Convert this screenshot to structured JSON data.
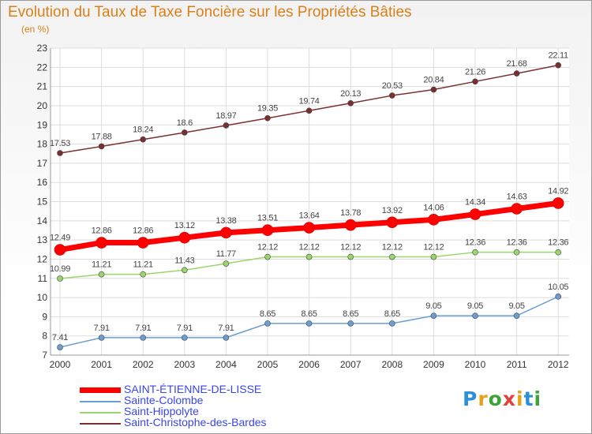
{
  "page": {
    "title": "Evolution du Taux de Taxe Foncière sur les Propriétés Bâties",
    "subtitle": "(en %)"
  },
  "logo": {
    "text": "ProXiti",
    "letters": [
      "P",
      "r",
      "o",
      "x",
      "i",
      "t",
      "i"
    ],
    "colors": [
      "#2d8fd6",
      "#e5a11c",
      "#3ea33a",
      "#e04040",
      "#e5a11c",
      "#2d8fd6",
      "#3ea33a"
    ]
  },
  "chart_data": {
    "type": "line",
    "title": "Evolution du Taux de Taxe Foncière sur les Propriétés Bâties",
    "ylabel": "(en %)",
    "xlabel": "",
    "categories": [
      "2000",
      "2001",
      "2002",
      "2003",
      "2004",
      "2005",
      "2006",
      "2007",
      "2008",
      "2009",
      "2010",
      "2011",
      "2012"
    ],
    "ylim": [
      7,
      23
    ],
    "yticks": [
      "7",
      "8",
      "9",
      "10",
      "11",
      "12",
      "13",
      "14",
      "15",
      "16",
      "17",
      "18",
      "19",
      "20",
      "21",
      "22",
      "23"
    ],
    "grid": true,
    "legend_position": "bottom-left",
    "series": [
      {
        "name": "SAINT-ÉTIENNE-DE-LISSE",
        "color": "#ff0000",
        "highlight": true,
        "values": [
          12.49,
          12.86,
          12.86,
          13.12,
          13.38,
          13.51,
          13.64,
          13.78,
          13.92,
          14.06,
          14.34,
          14.63,
          14.92
        ],
        "labels": [
          "12.49",
          "12.86",
          "12.86",
          "13.12",
          "13.38",
          "13.51",
          "13.64",
          "13.78",
          "13.92",
          "14.06",
          "14.34",
          "14.63",
          "14.92"
        ]
      },
      {
        "name": "Sainte-Colombe",
        "color": "#6a9fd4",
        "highlight": false,
        "values": [
          7.41,
          7.91,
          7.91,
          7.91,
          7.91,
          8.65,
          8.65,
          8.65,
          8.65,
          9.05,
          9.05,
          9.05,
          10.05
        ],
        "labels": [
          "7.41",
          "7.91",
          "7.91",
          "7.91",
          "7.91",
          "8.65",
          "8.65",
          "8.65",
          "8.65",
          "9.05",
          "9.05",
          "9.05",
          "10.05"
        ]
      },
      {
        "name": "Saint-Hippolyte",
        "color": "#99d66b",
        "highlight": false,
        "values": [
          10.99,
          11.21,
          11.21,
          11.43,
          11.77,
          12.12,
          12.12,
          12.12,
          12.12,
          12.12,
          12.36,
          12.36,
          12.36
        ],
        "labels": [
          "10.99",
          "11.21",
          "11.21",
          "11.43",
          "11.77",
          "12.12",
          "12.12",
          "12.12",
          "12.12",
          "12.12",
          "12.36",
          "12.36",
          "12.36"
        ]
      },
      {
        "name": "Saint-Christophe-des-Bardes",
        "color": "#7a3030",
        "highlight": false,
        "values": [
          17.53,
          17.88,
          18.24,
          18.6,
          18.97,
          19.35,
          19.74,
          20.13,
          20.53,
          20.84,
          21.26,
          21.68,
          22.11
        ],
        "labels": [
          "17.53",
          "17.88",
          "18.24",
          "18.6",
          "18.97",
          "19.35",
          "19.74",
          "20.13",
          "20.53",
          "20.84",
          "21.26",
          "21.68",
          "22.11"
        ]
      }
    ]
  }
}
